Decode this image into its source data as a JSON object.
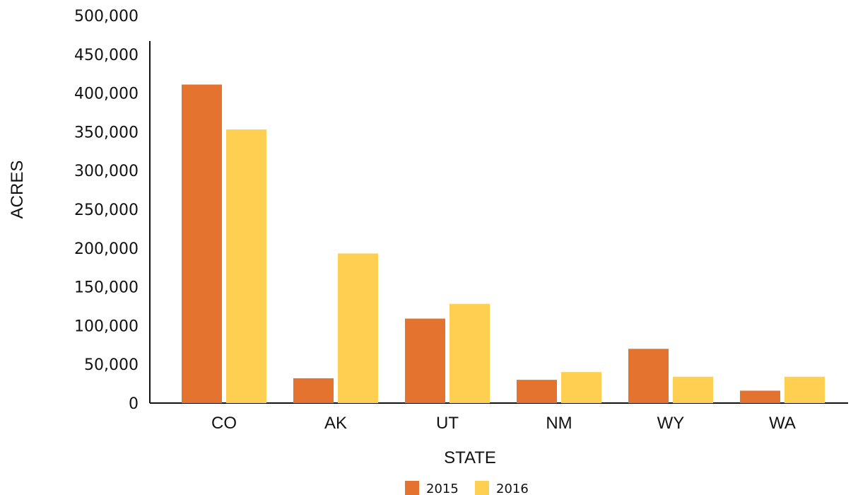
{
  "chart_data": {
    "type": "bar",
    "title": "",
    "xlabel": "STATE",
    "ylabel": "ACRES",
    "categories": [
      "CO",
      "AK",
      "UT",
      "NM",
      "WY",
      "WA"
    ],
    "series": [
      {
        "name": "2015",
        "color": "#e4732f",
        "values": [
          411000,
          32000,
          109000,
          30000,
          70000,
          16000
        ]
      },
      {
        "name": "2016",
        "color": "#fecf50",
        "values": [
          353000,
          193000,
          128000,
          40000,
          34000,
          34000
        ]
      }
    ],
    "ylim": [
      0,
      500000
    ],
    "yticks": [
      0,
      50000,
      100000,
      150000,
      200000,
      250000,
      300000,
      350000,
      400000,
      450000,
      500000
    ],
    "ytick_labels": [
      "0",
      "50,000",
      "100,000",
      "150,000",
      "200,000",
      "250,000",
      "300,000",
      "350,000",
      "400,000",
      "450,000",
      "500,000"
    ],
    "grid": false,
    "legend_position": "bottom-center"
  }
}
